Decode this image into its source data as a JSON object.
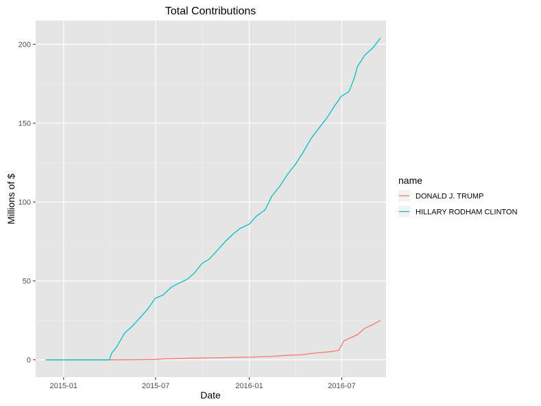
{
  "chart_data": {
    "type": "line",
    "title": "Total Contributions",
    "xlabel": "Date",
    "ylabel": "Millions of $",
    "x_axis_type": "date",
    "xlim": [
      "2014-11-07",
      "2016-09-26"
    ],
    "ylim": [
      -11,
      215
    ],
    "x_ticks": [
      {
        "value": "2015-01-01",
        "label": "2015-01"
      },
      {
        "value": "2015-07-01",
        "label": "2015-07"
      },
      {
        "value": "2016-01-01",
        "label": "2016-01"
      },
      {
        "value": "2016-07-01",
        "label": "2016-07"
      }
    ],
    "y_ticks": [
      0,
      50,
      100,
      150,
      200
    ],
    "grid": true,
    "background": "#e5e5e5",
    "legend": {
      "title": "name",
      "position": "right"
    },
    "series": [
      {
        "name": "DONALD J. TRUMP",
        "color": "#f8766d",
        "points": [
          [
            "2014-11-27",
            0
          ],
          [
            "2015-04-15",
            0
          ],
          [
            "2015-06-01",
            0.1
          ],
          [
            "2015-07-01",
            0.2
          ],
          [
            "2015-07-15",
            0.6
          ],
          [
            "2015-08-15",
            0.9
          ],
          [
            "2015-09-15",
            1.1
          ],
          [
            "2015-10-15",
            1.2
          ],
          [
            "2015-11-15",
            1.4
          ],
          [
            "2015-12-15",
            1.6
          ],
          [
            "2016-01-15",
            1.8
          ],
          [
            "2016-02-15",
            2.2
          ],
          [
            "2016-03-15",
            2.8
          ],
          [
            "2016-04-15",
            3.3
          ],
          [
            "2016-05-01",
            4.0
          ],
          [
            "2016-05-20",
            4.6
          ],
          [
            "2016-06-10",
            5.2
          ],
          [
            "2016-06-25",
            6.0
          ],
          [
            "2016-07-01",
            9.5
          ],
          [
            "2016-07-05",
            12.0
          ],
          [
            "2016-07-15",
            13.5
          ],
          [
            "2016-08-01",
            16.0
          ],
          [
            "2016-08-15",
            20.0
          ],
          [
            "2016-09-01",
            22.5
          ],
          [
            "2016-09-15",
            25.0
          ]
        ]
      },
      {
        "name": "HILLARY RODHAM CLINTON",
        "color": "#00bfc4",
        "points": [
          [
            "2014-11-27",
            0
          ],
          [
            "2015-04-01",
            0
          ],
          [
            "2015-04-05",
            4.0
          ],
          [
            "2015-04-15",
            8.0
          ],
          [
            "2015-05-01",
            17.0
          ],
          [
            "2015-05-15",
            21.0
          ],
          [
            "2015-06-01",
            27.0
          ],
          [
            "2015-06-15",
            32.0
          ],
          [
            "2015-06-30",
            39.0
          ],
          [
            "2015-07-15",
            41.0
          ],
          [
            "2015-08-01",
            46.0
          ],
          [
            "2015-08-15",
            48.5
          ],
          [
            "2015-09-01",
            51.0
          ],
          [
            "2015-09-15",
            55.0
          ],
          [
            "2015-09-30",
            61.0
          ],
          [
            "2015-10-15",
            64.0
          ],
          [
            "2015-11-01",
            70.0
          ],
          [
            "2015-11-15",
            75.0
          ],
          [
            "2015-12-01",
            80.0
          ],
          [
            "2015-12-15",
            83.5
          ],
          [
            "2016-01-01",
            86.0
          ],
          [
            "2016-01-15",
            91.0
          ],
          [
            "2016-02-01",
            95.0
          ],
          [
            "2016-02-15",
            104.0
          ],
          [
            "2016-03-01",
            110.0
          ],
          [
            "2016-03-15",
            117.0
          ],
          [
            "2016-04-01",
            124.0
          ],
          [
            "2016-04-15",
            131.0
          ],
          [
            "2016-05-01",
            140.0
          ],
          [
            "2016-05-15",
            146.0
          ],
          [
            "2016-06-01",
            153.0
          ],
          [
            "2016-06-15",
            160.0
          ],
          [
            "2016-06-30",
            167.0
          ],
          [
            "2016-07-15",
            170.0
          ],
          [
            "2016-07-25",
            178.0
          ],
          [
            "2016-08-01",
            186.0
          ],
          [
            "2016-08-15",
            193.0
          ],
          [
            "2016-09-01",
            198.0
          ],
          [
            "2016-09-15",
            204.0
          ]
        ]
      }
    ]
  }
}
